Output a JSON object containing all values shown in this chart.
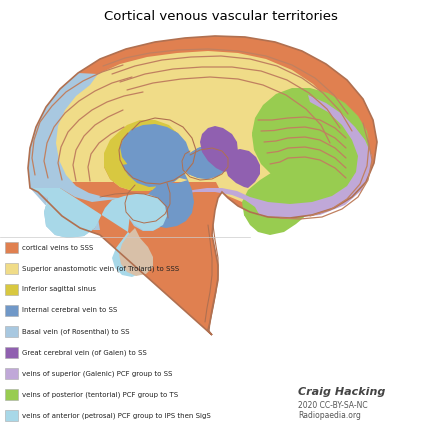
{
  "title": "Cortical venous vascular territories",
  "title_fontsize": 9.5,
  "background_color": "#ffffff",
  "legend_items": [
    {
      "color": "#E08050",
      "label": "cortical veins to SSS"
    },
    {
      "color": "#F0DC88",
      "label": "Superior anastomotic vein (of Trolard) to SSS"
    },
    {
      "color": "#D8C840",
      "label": "Inferior sagittal sinus"
    },
    {
      "color": "#7098C8",
      "label": "Internal cerebral vein to SS"
    },
    {
      "color": "#A8C8E0",
      "label": "Basal vein (of Rosenthal) to SS"
    },
    {
      "color": "#9060B0",
      "label": "Great cerebral vein (of Galen) to SS"
    },
    {
      "color": "#C0A8D8",
      "label": "veins of superior (Galenic) PCF group to SS"
    },
    {
      "color": "#98CC50",
      "label": "veins of posterior (tentorial) PCF group to TS"
    },
    {
      "color": "#A8D8E8",
      "label": "veins of anterior (petrosal) PCF group to IPS then SigS"
    }
  ],
  "watermark_line1": "Craig Hacking",
  "watermark_line2": "2020 CC-BY-SA-NC",
  "watermark_line3": "Radiopaedia.org",
  "outline_color": "#B07050",
  "gyri_color": "#C08060"
}
